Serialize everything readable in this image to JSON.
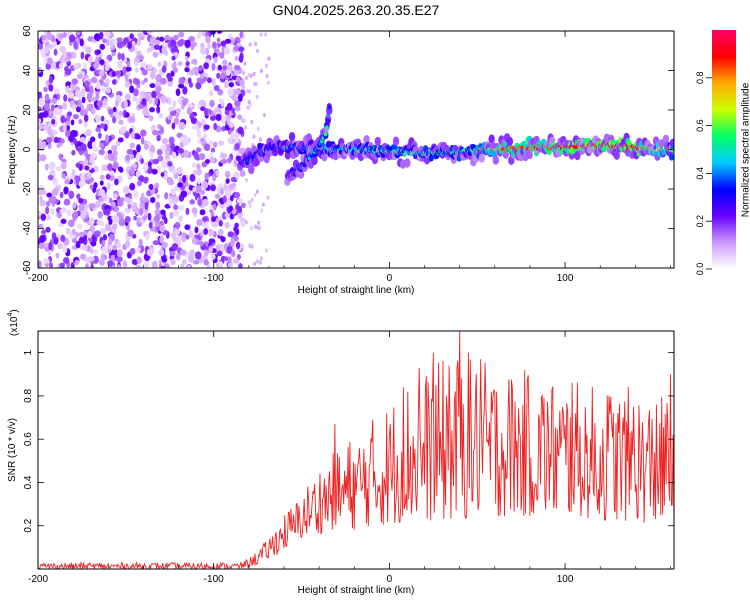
{
  "title": "GN04.2025.263.20.35.E27",
  "chart_data": [
    {
      "type": "heatmap",
      "title": "GN04.2025.263.20.35.E27",
      "xlabel": "Height of straight line (km)",
      "ylabel": "Frequency (Hz)",
      "xlim": [
        -200,
        162
      ],
      "ylim": [
        -60,
        60
      ],
      "xticks": [
        -200,
        -100,
        0,
        100
      ],
      "yticks": [
        -60,
        -40,
        -20,
        0,
        20,
        40,
        60
      ],
      "colorbar": {
        "label": "Normalized spectral amplitude",
        "range": [
          0,
          1
        ],
        "ticks": [
          0.0,
          0.2,
          0.4,
          0.6,
          0.8
        ],
        "colormap": [
          "#ffffff",
          "#cc99ff",
          "#6600ff",
          "#0000ff",
          "#00ccff",
          "#00ff66",
          "#ccff00",
          "#ffaa00",
          "#ff0000",
          "#ff0066"
        ]
      },
      "noise_region_km": [
        -200,
        -83
      ],
      "signal_track": [
        {
          "x": -85,
          "y": -7,
          "v": 0.3
        },
        {
          "x": -80,
          "y": -5,
          "v": 0.35
        },
        {
          "x": -75,
          "y": -2,
          "v": 0.35
        },
        {
          "x": -70,
          "y": 0,
          "v": 0.35
        },
        {
          "x": -62,
          "y": 1,
          "v": 0.35
        },
        {
          "x": -55,
          "y": 1,
          "v": 0.4
        },
        {
          "x": -45,
          "y": 1,
          "v": 0.4
        },
        {
          "x": -35,
          "y": 0,
          "v": 0.45
        },
        {
          "x": -25,
          "y": 0,
          "v": 0.5
        },
        {
          "x": -15,
          "y": 0,
          "v": 0.5
        },
        {
          "x": 0,
          "y": -1,
          "v": 0.55
        },
        {
          "x": 20,
          "y": -2,
          "v": 0.5
        },
        {
          "x": 40,
          "y": -1,
          "v": 0.55
        },
        {
          "x": 55,
          "y": 0,
          "v": 0.6
        },
        {
          "x": 65,
          "y": 0,
          "v": 0.85
        },
        {
          "x": 80,
          "y": 1,
          "v": 0.85
        },
        {
          "x": 95,
          "y": 1,
          "v": 0.9
        },
        {
          "x": 110,
          "y": 2,
          "v": 0.97
        },
        {
          "x": 125,
          "y": 2,
          "v": 0.97
        },
        {
          "x": 140,
          "y": 1,
          "v": 0.95
        },
        {
          "x": 150,
          "y": 0,
          "v": 0.7
        },
        {
          "x": 162,
          "y": 0,
          "v": 0.6
        }
      ],
      "branch_track": [
        {
          "x": -58,
          "y": -14,
          "v": 0.3
        },
        {
          "x": -50,
          "y": -9,
          "v": 0.4
        },
        {
          "x": -45,
          "y": -4,
          "v": 0.45
        },
        {
          "x": -40,
          "y": 2,
          "v": 0.5
        },
        {
          "x": -36,
          "y": 8,
          "v": 0.55
        },
        {
          "x": -34,
          "y": 24,
          "v": 0.3
        }
      ]
    },
    {
      "type": "line",
      "xlabel": "Height of straight line (km)",
      "ylabel": "SNR (10 * v/v)",
      "y_multiplier": "(x10",
      "y_multiplier_exp": "4",
      "y_multiplier_close": ")",
      "xlim": [
        -200,
        162
      ],
      "ylim": [
        0,
        1.1
      ],
      "xticks": [
        -200,
        -100,
        0,
        100
      ],
      "yticks": [
        0.2,
        0.4,
        0.6,
        0.8,
        1.0
      ],
      "color": "#ee2222",
      "envelope": {
        "x": [
          -200,
          -85,
          -80,
          -75,
          -70,
          -65,
          -60,
          -55,
          -50,
          -45,
          -40,
          -35,
          -30,
          -25,
          -20,
          -10,
          0,
          10,
          20,
          30,
          40,
          50,
          60,
          70,
          80,
          90,
          100,
          110,
          120,
          130,
          140,
          150,
          162
        ],
        "min": [
          0.0,
          0.0,
          0.01,
          0.02,
          0.04,
          0.06,
          0.09,
          0.11,
          0.14,
          0.16,
          0.16,
          0.18,
          0.18,
          0.18,
          0.18,
          0.2,
          0.2,
          0.22,
          0.22,
          0.22,
          0.22,
          0.24,
          0.24,
          0.24,
          0.24,
          0.24,
          0.24,
          0.24,
          0.22,
          0.22,
          0.22,
          0.2,
          0.2
        ],
        "max": [
          0.03,
          0.03,
          0.05,
          0.09,
          0.13,
          0.2,
          0.26,
          0.3,
          0.35,
          0.42,
          0.48,
          0.52,
          0.55,
          0.6,
          0.62,
          0.7,
          0.78,
          0.88,
          0.92,
          0.97,
          1.0,
          0.97,
          0.95,
          0.93,
          0.92,
          0.9,
          0.88,
          0.86,
          0.85,
          0.85,
          0.84,
          0.8,
          0.8
        ]
      },
      "peaks": [
        {
          "x": -65,
          "y": 0.15
        },
        {
          "x": -40,
          "y": 0.3
        },
        {
          "x": -31,
          "y": 0.67
        },
        {
          "x": 8,
          "y": 0.84
        },
        {
          "x": 17,
          "y": 0.93
        },
        {
          "x": 25,
          "y": 1.0
        },
        {
          "x": 34,
          "y": 0.94
        },
        {
          "x": 40,
          "y": 1.1
        },
        {
          "x": 45,
          "y": 1.0
        },
        {
          "x": 52,
          "y": 0.97
        },
        {
          "x": 61,
          "y": 0.82
        },
        {
          "x": 70,
          "y": 0.83
        },
        {
          "x": 88,
          "y": 0.79
        },
        {
          "x": 104,
          "y": 0.86
        },
        {
          "x": 125,
          "y": 0.8
        },
        {
          "x": 139,
          "y": 0.75
        },
        {
          "x": 152,
          "y": 0.76
        },
        {
          "x": 160,
          "y": 0.9
        }
      ]
    }
  ]
}
